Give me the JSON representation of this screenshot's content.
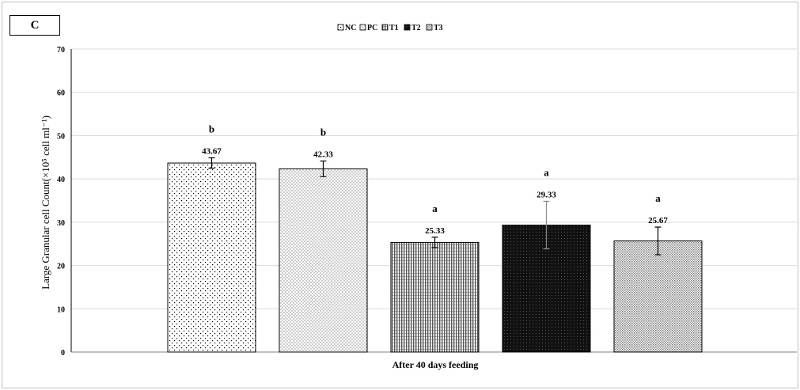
{
  "panel_label": "C",
  "colors": {
    "axis": "#000000",
    "grid": "#d9d9d9",
    "bar_stroke": "#000000",
    "dark": "#000000",
    "light": "#ffffff"
  },
  "chart_data": {
    "type": "bar",
    "title": "",
    "xlabel": "After 40 days feeding",
    "ylabel": "Large Granular cell Count(×10⁵ cell ml⁻¹)",
    "ylim": [
      0,
      70
    ],
    "yticks": [
      0,
      10,
      20,
      30,
      40,
      50,
      60,
      70
    ],
    "grid": true,
    "legend_position": "top",
    "categories": [
      "After 40 days feeding"
    ],
    "series": [
      {
        "name": "NC",
        "value": 43.67,
        "error": 1.2,
        "letter": "b",
        "value_label": "43.67",
        "pattern": "dots-sparse"
      },
      {
        "name": "PC",
        "value": 42.33,
        "error": 1.8,
        "letter": "b",
        "value_label": "42.33",
        "pattern": "dots-dense"
      },
      {
        "name": "T1",
        "value": 25.33,
        "error": 1.2,
        "letter": "a",
        "value_label": "25.33",
        "pattern": "vlines"
      },
      {
        "name": "T2",
        "value": 29.33,
        "error": 5.5,
        "letter": "a",
        "value_label": "29.33",
        "pattern": "dark"
      },
      {
        "name": "T3",
        "value": 25.67,
        "error": 3.2,
        "letter": "a",
        "value_label": "25.67",
        "pattern": "grid"
      }
    ]
  }
}
